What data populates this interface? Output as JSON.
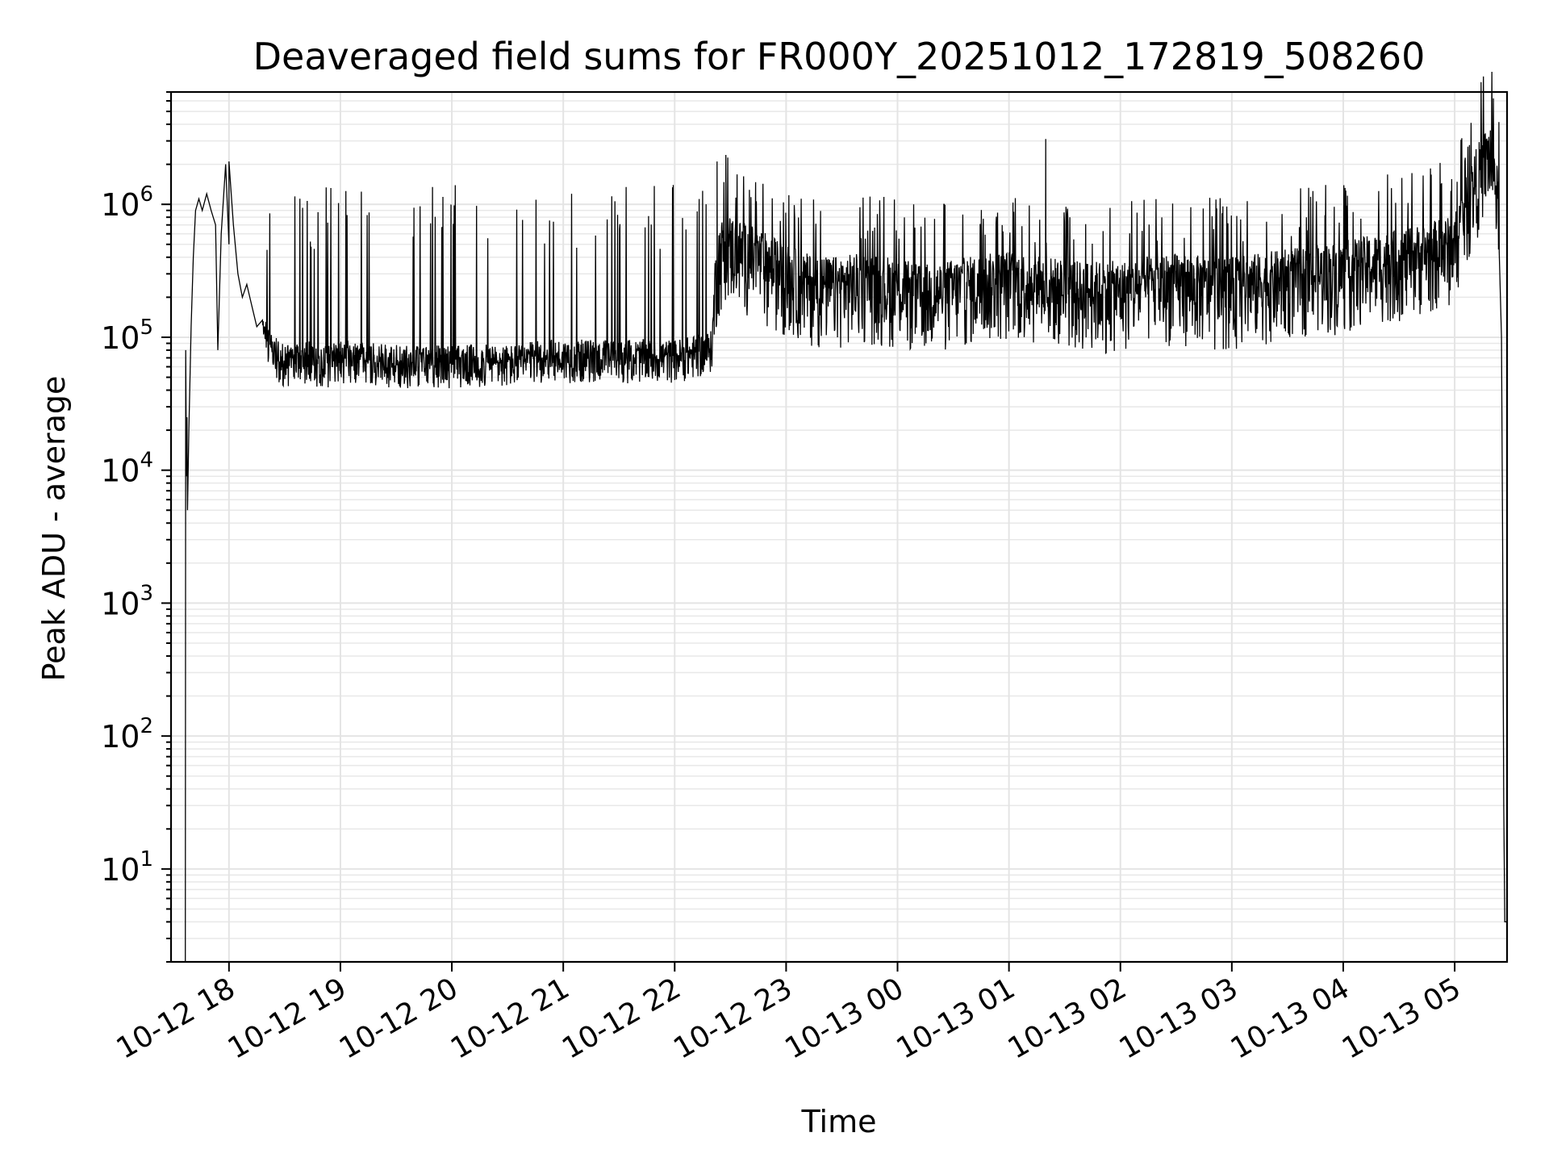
{
  "chart_data": {
    "type": "line",
    "title": "Deaveraged field sums for FR000Y_20251012_172819_508260",
    "xlabel": "Time",
    "ylabel": "Peak ADU - average",
    "yscale": "log",
    "ylim": [
      2,
      7000000
    ],
    "xlim_hours": [
      17.48,
      29.47
    ],
    "grid": true,
    "x_ticks": [
      {
        "hour": 18,
        "label": "10-12 18"
      },
      {
        "hour": 19,
        "label": "10-12 19"
      },
      {
        "hour": 20,
        "label": "10-12 20"
      },
      {
        "hour": 21,
        "label": "10-12 21"
      },
      {
        "hour": 22,
        "label": "10-12 22"
      },
      {
        "hour": 23,
        "label": "10-12 23"
      },
      {
        "hour": 24,
        "label": "10-13 00"
      },
      {
        "hour": 25,
        "label": "10-13 01"
      },
      {
        "hour": 26,
        "label": "10-13 02"
      },
      {
        "hour": 27,
        "label": "10-13 03"
      },
      {
        "hour": 28,
        "label": "10-13 04"
      },
      {
        "hour": 29,
        "label": "10-13 05"
      }
    ],
    "y_ticks": [
      {
        "value": 10,
        "base": "10",
        "exp": "1"
      },
      {
        "value": 100,
        "base": "10",
        "exp": "2"
      },
      {
        "value": 1000,
        "base": "10",
        "exp": "3"
      },
      {
        "value": 10000,
        "base": "10",
        "exp": "4"
      },
      {
        "value": 100000,
        "base": "10",
        "exp": "5"
      },
      {
        "value": 1000000,
        "base": "10",
        "exp": "6"
      }
    ],
    "series": [
      {
        "name": "Peak ADU - average",
        "color": "#000000",
        "points": [
          [
            17.608,
            2
          ],
          [
            17.612,
            80000
          ],
          [
            17.618,
            9000
          ],
          [
            17.623,
            25000
          ],
          [
            17.628,
            5000
          ],
          [
            17.64,
            20000
          ],
          [
            17.66,
            120000
          ],
          [
            17.68,
            400000
          ],
          [
            17.7,
            900000
          ],
          [
            17.73,
            1100000
          ],
          [
            17.76,
            900000
          ],
          [
            17.8,
            1200000
          ],
          [
            17.84,
            900000
          ],
          [
            17.88,
            700000
          ],
          [
            17.9,
            80000
          ],
          [
            17.93,
            600000
          ],
          [
            17.97,
            2000000
          ],
          [
            18.0,
            500000
          ],
          [
            18.04,
            700000
          ],
          [
            18.08,
            300000
          ],
          [
            18.12,
            200000
          ],
          [
            18.16,
            250000
          ],
          [
            18.2,
            180000
          ],
          [
            18.25,
            120000
          ],
          [
            18.3,
            100000
          ],
          [
            18.35,
            80000
          ],
          [
            18.4,
            65000
          ],
          [
            18.5,
            55000
          ],
          [
            18.6,
            55000
          ],
          [
            18.7,
            60000
          ],
          [
            18.8,
            55000
          ],
          [
            18.9,
            55000
          ],
          [
            19.0,
            60000
          ],
          [
            19.2,
            60000
          ],
          [
            19.4,
            55000
          ],
          [
            19.6,
            55000
          ],
          [
            19.8,
            55000
          ],
          [
            20.0,
            55000
          ],
          [
            20.2,
            55000
          ],
          [
            20.4,
            55000
          ],
          [
            20.6,
            55000
          ],
          [
            20.8,
            60000
          ],
          [
            21.0,
            60000
          ],
          [
            21.2,
            60000
          ],
          [
            21.4,
            60000
          ],
          [
            21.6,
            60000
          ],
          [
            21.8,
            60000
          ],
          [
            22.0,
            60000
          ],
          [
            22.2,
            65000
          ],
          [
            22.33,
            70000
          ],
          [
            22.38,
            250000
          ],
          [
            22.45,
            350000
          ],
          [
            22.6,
            300000
          ],
          [
            22.8,
            250000
          ],
          [
            23.0,
            200000
          ],
          [
            23.2,
            170000
          ],
          [
            23.4,
            160000
          ],
          [
            23.6,
            170000
          ],
          [
            23.8,
            170000
          ],
          [
            24.0,
            160000
          ],
          [
            24.2,
            140000
          ],
          [
            24.4,
            150000
          ],
          [
            24.6,
            160000
          ],
          [
            24.8,
            170000
          ],
          [
            25.0,
            180000
          ],
          [
            25.2,
            170000
          ],
          [
            25.4,
            160000
          ],
          [
            25.6,
            150000
          ],
          [
            25.8,
            150000
          ],
          [
            26.0,
            150000
          ],
          [
            26.2,
            160000
          ],
          [
            26.4,
            170000
          ],
          [
            26.6,
            170000
          ],
          [
            26.8,
            160000
          ],
          [
            27.0,
            160000
          ],
          [
            27.2,
            170000
          ],
          [
            27.4,
            180000
          ],
          [
            27.6,
            190000
          ],
          [
            27.8,
            200000
          ],
          [
            28.0,
            210000
          ],
          [
            28.2,
            230000
          ],
          [
            28.4,
            250000
          ],
          [
            28.6,
            270000
          ],
          [
            28.8,
            300000
          ],
          [
            29.0,
            330000
          ],
          [
            29.05,
            500000
          ],
          [
            29.12,
            700000
          ],
          [
            29.18,
            1000000
          ],
          [
            29.24,
            1300000
          ],
          [
            29.3,
            1600000
          ],
          [
            29.34,
            1400000
          ],
          [
            29.37,
            900000
          ],
          [
            29.4,
            600000
          ],
          [
            29.42,
            100000
          ],
          [
            29.43,
            3000
          ],
          [
            29.44,
            30
          ],
          [
            29.45,
            4
          ],
          [
            29.47,
            4
          ]
        ],
        "noise": {
          "band_ratio_low_quiet": 0.75,
          "band_ratio_high_quiet": 1.6,
          "band_ratio_low_busy": 0.5,
          "band_ratio_high_busy": 2.5,
          "spike_max": 1400000,
          "quiet_range_hours": [
            18.3,
            22.35
          ],
          "busy_range_hours": [
            22.35,
            29.4
          ]
        },
        "notable_spikes": [
          [
            18.0,
            2100000
          ],
          [
            22.38,
            2100000
          ],
          [
            25.33,
            3100000
          ],
          [
            29.32,
            3600000
          ]
        ]
      }
    ]
  }
}
